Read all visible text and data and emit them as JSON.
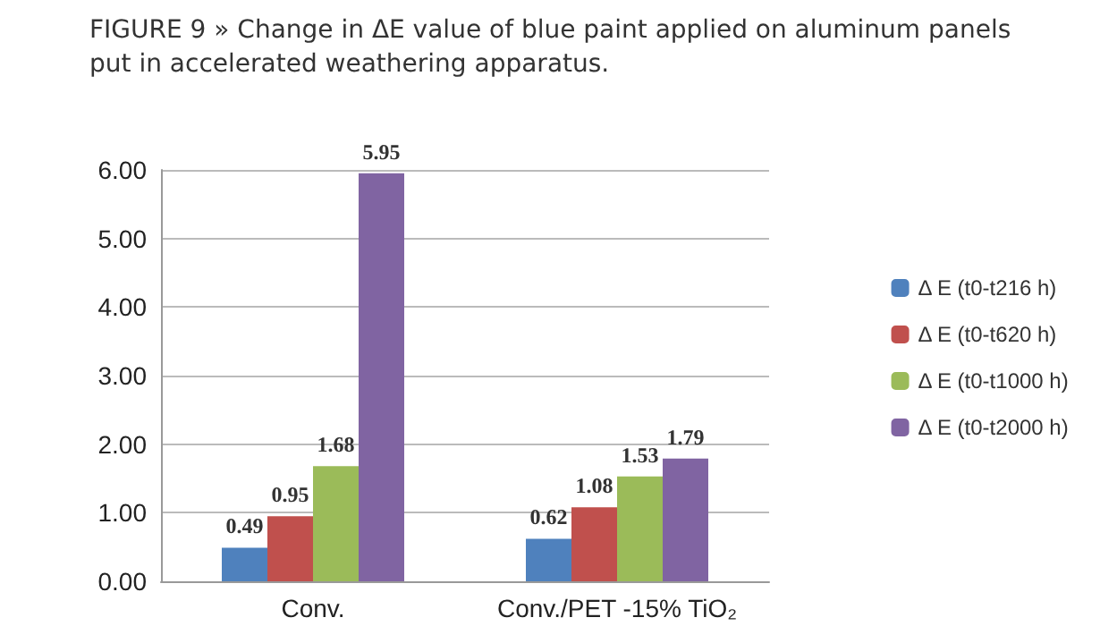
{
  "chart_data": {
    "type": "bar",
    "title": "FIGURE 9 » Change in ΔE value of blue paint applied on aluminum panels put in accelerated weathering apparatus.",
    "categories": [
      "Conv.",
      "Conv./PET -15% TiO₂"
    ],
    "series": [
      {
        "name": "Δ E (t0-t216 h)",
        "color": "#4f81bd",
        "values": [
          0.49,
          0.62
        ]
      },
      {
        "name": "Δ E (t0-t620 h)",
        "color": "#c0504d",
        "values": [
          0.95,
          1.08
        ]
      },
      {
        "name": "Δ E (t0-t1000 h)",
        "color": "#9bbb59",
        "values": [
          1.68,
          1.53
        ]
      },
      {
        "name": "Δ E (t0-t2000 h)",
        "color": "#8064a2",
        "values": [
          5.95,
          1.79
        ]
      }
    ],
    "ylim": [
      0,
      6
    ],
    "yticks": [
      {
        "value": 0,
        "label": "0.00"
      },
      {
        "value": 1,
        "label": "1.00"
      },
      {
        "value": 2,
        "label": "2.00"
      },
      {
        "value": 3,
        "label": "3.00"
      },
      {
        "value": 4,
        "label": "4.00"
      },
      {
        "value": 5,
        "label": "5.00"
      },
      {
        "value": 6,
        "label": "6.00"
      }
    ],
    "grid": "y",
    "legend": "right",
    "data_labels": true
  }
}
